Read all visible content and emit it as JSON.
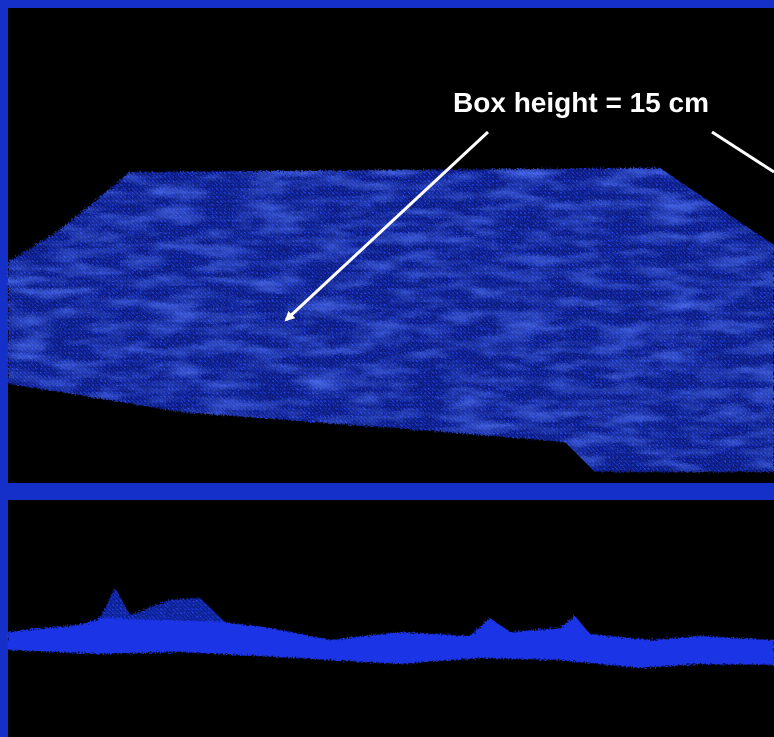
{
  "annotation": {
    "text": "Box height = 15 cm"
  }
}
